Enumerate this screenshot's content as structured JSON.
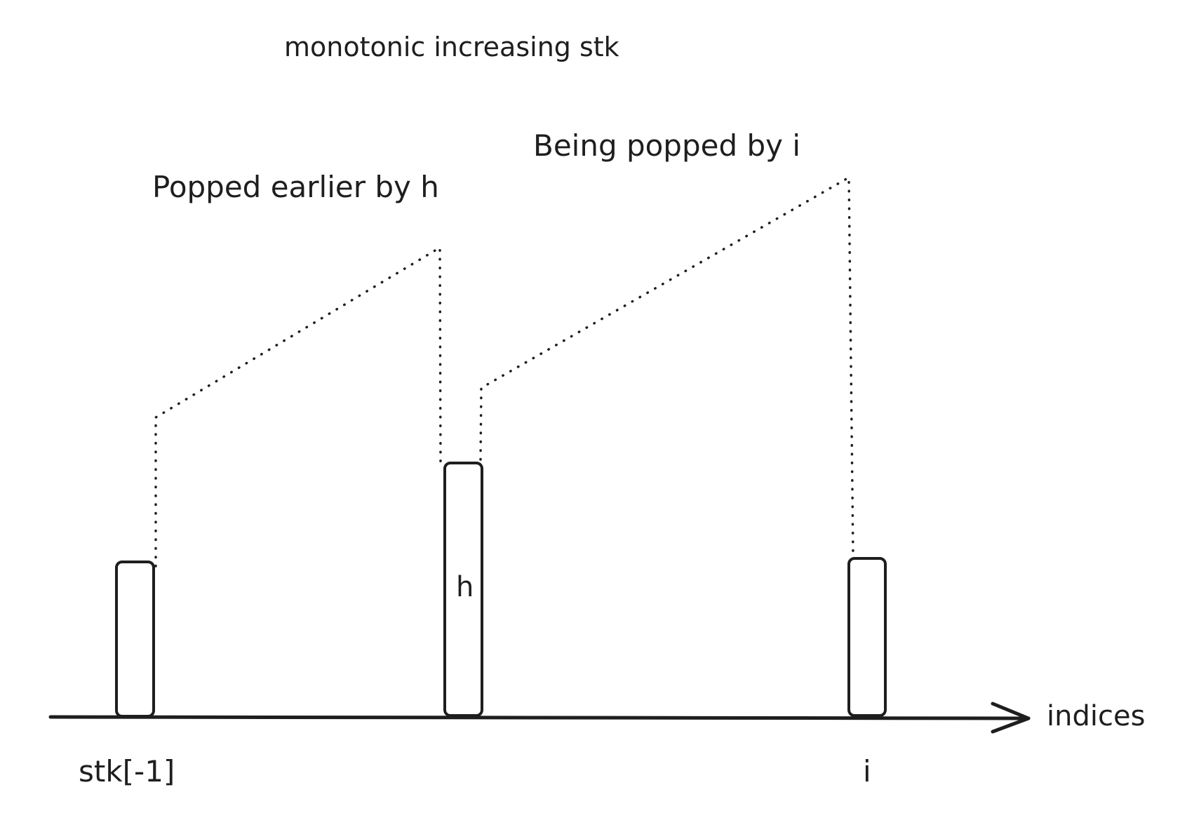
{
  "title": "monotonic increasing stk",
  "annotations": {
    "popped_earlier": "Popped earlier by h",
    "being_popped": "Being popped by i"
  },
  "bars": {
    "left_label": "stk[-1]",
    "middle_label": "h",
    "right_label": "i"
  },
  "axis": {
    "label": "indices"
  },
  "colors": {
    "stroke": "#1e1e1e",
    "background": "#ffffff"
  }
}
